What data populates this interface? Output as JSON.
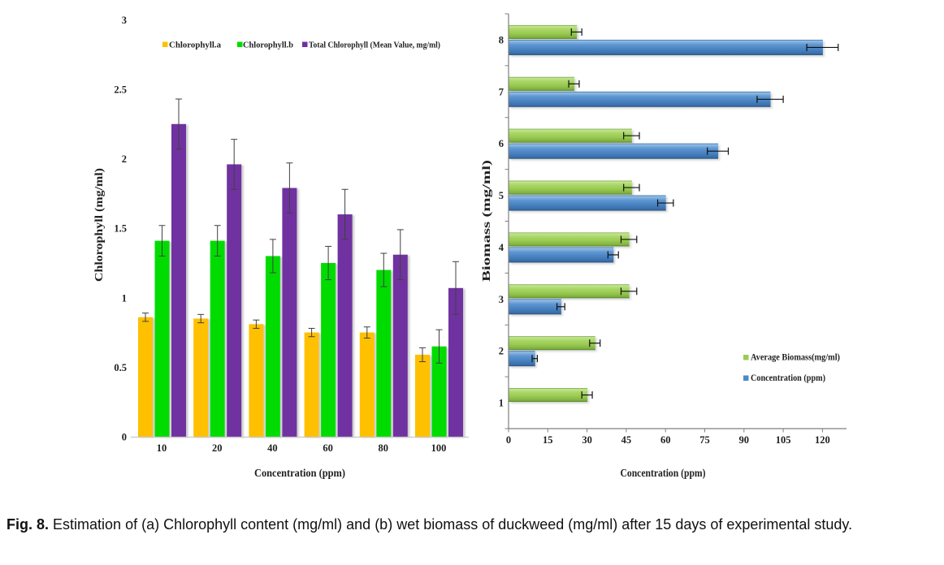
{
  "caption": {
    "prefix": "Fig. 8.",
    "text": "Estimation of (a) Chlorophyll content (mg/ml) and (b) wet biomass of duckweed (mg/ml) after 15 days of experimental study."
  },
  "chart_data": [
    {
      "type": "bar",
      "panel": "a",
      "orientation": "vertical",
      "title": "",
      "xlabel": "Concentration  (ppm)",
      "ylabel": "Chlorophyll  (mg/ml)",
      "ylim": [
        0,
        3
      ],
      "yticks": [
        0,
        0.5,
        1,
        1.5,
        2,
        2.5,
        3
      ],
      "ytick_labels": [
        "0",
        "0.5",
        "1",
        "1.5",
        "2",
        "2.5",
        "3"
      ],
      "categories": [
        "10",
        "20",
        "40",
        "60",
        "80",
        "100"
      ],
      "grid": false,
      "legend_position": "top",
      "axis_color": "#c8c8c8",
      "error_bar_color": "#404040",
      "series": [
        {
          "name": "Chlorophyll.a",
          "color": "#FFC000",
          "values": [
            0.86,
            0.85,
            0.81,
            0.75,
            0.75,
            0.59
          ],
          "errors": [
            0.03,
            0.03,
            0.03,
            0.03,
            0.04,
            0.05
          ]
        },
        {
          "name": "Chlorophyll.b",
          "color": "#00DC00",
          "values": [
            1.41,
            1.41,
            1.3,
            1.25,
            1.2,
            0.65
          ],
          "errors": [
            0.11,
            0.11,
            0.12,
            0.12,
            0.12,
            0.12
          ]
        },
        {
          "name": "Total Chlorophyll (Mean Value, mg/ml)",
          "color": "#7030A0",
          "values": [
            2.25,
            1.96,
            1.79,
            1.6,
            1.31,
            1.07
          ],
          "errors": [
            0.18,
            0.18,
            0.18,
            0.18,
            0.18,
            0.19
          ]
        }
      ]
    },
    {
      "type": "bar",
      "panel": "b",
      "orientation": "horizontal",
      "title": "",
      "xlabel": "Concentration  (ppm)",
      "ylabel": "Biomass (mg/ml)",
      "xlim": [
        0,
        130
      ],
      "xticks": [
        0,
        15,
        30,
        45,
        60,
        75,
        90,
        105,
        120
      ],
      "categories": [
        "1",
        "2",
        "3",
        "4",
        "5",
        "6",
        "7",
        "8"
      ],
      "grid": false,
      "legend_position": "middle-right",
      "axis_color": "#7f7f7f",
      "error_bar_color": "#111111",
      "series": [
        {
          "name": "Average Biomass(mg/ml)",
          "color": "#9BCB53",
          "values": [
            30,
            33,
            46,
            46,
            47,
            47,
            25,
            26
          ],
          "errors": [
            2,
            2,
            3,
            3,
            3,
            3,
            2,
            2
          ]
        },
        {
          "name": "Concentration (ppm)",
          "color": "#4E89C6",
          "values": [
            0,
            10,
            20,
            40,
            60,
            80,
            100,
            120
          ],
          "errors": [
            0,
            1,
            1.5,
            2,
            3,
            4,
            5,
            6
          ]
        }
      ]
    }
  ]
}
